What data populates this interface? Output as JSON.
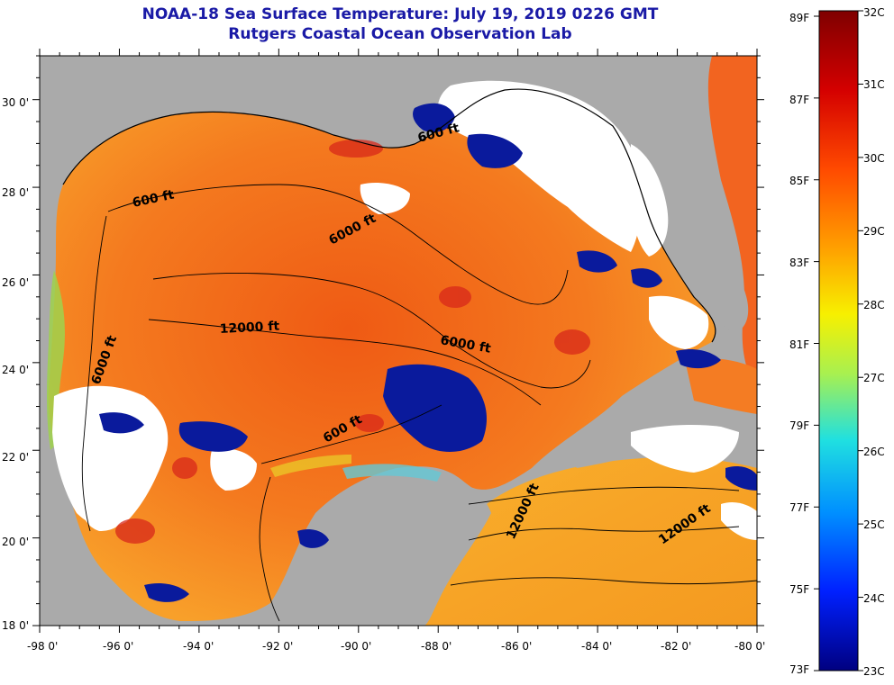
{
  "title": {
    "line1": "NOAA-18 Sea Surface Temperature:  July 19, 2019 0226 GMT",
    "line2": "Rutgers Coastal Ocean Observation Lab"
  },
  "axes": {
    "lat_labels": [
      "30 0'",
      "28 0'",
      "26 0'",
      "24 0'",
      "22 0'",
      "20 0'",
      "18 0'"
    ],
    "lon_labels": [
      "-98 0'",
      "-96 0'",
      "-94 0'",
      "-92 0'",
      "-90 0'",
      "-88 0'",
      "-86 0'",
      "-84 0'",
      "-82 0'",
      "-80 0'"
    ]
  },
  "contour_labels": [
    {
      "text": "600 ft"
    },
    {
      "text": "6000 ft"
    },
    {
      "text": "12000 ft"
    },
    {
      "text": "6000 ft"
    },
    {
      "text": "6000 ft"
    },
    {
      "text": "600 ft"
    },
    {
      "text": "12000 ft"
    },
    {
      "text": "12000 ft"
    },
    {
      "text": "600 ft"
    }
  ],
  "colorbar": {
    "celsius": [
      "32C",
      "31C",
      "30C",
      "29C",
      "28C",
      "27C",
      "26C",
      "25C",
      "24C",
      "23C"
    ],
    "fahrenheit": [
      "89F",
      "87F",
      "85F",
      "83F",
      "81F",
      "79F",
      "77F",
      "75F",
      "73F"
    ]
  },
  "colors": {
    "land": "#aaaaaa",
    "cloud": "#ffffff",
    "title": "#1a1aa6",
    "warm_water": "#f36a1c",
    "cold": "#0a1a9c"
  }
}
